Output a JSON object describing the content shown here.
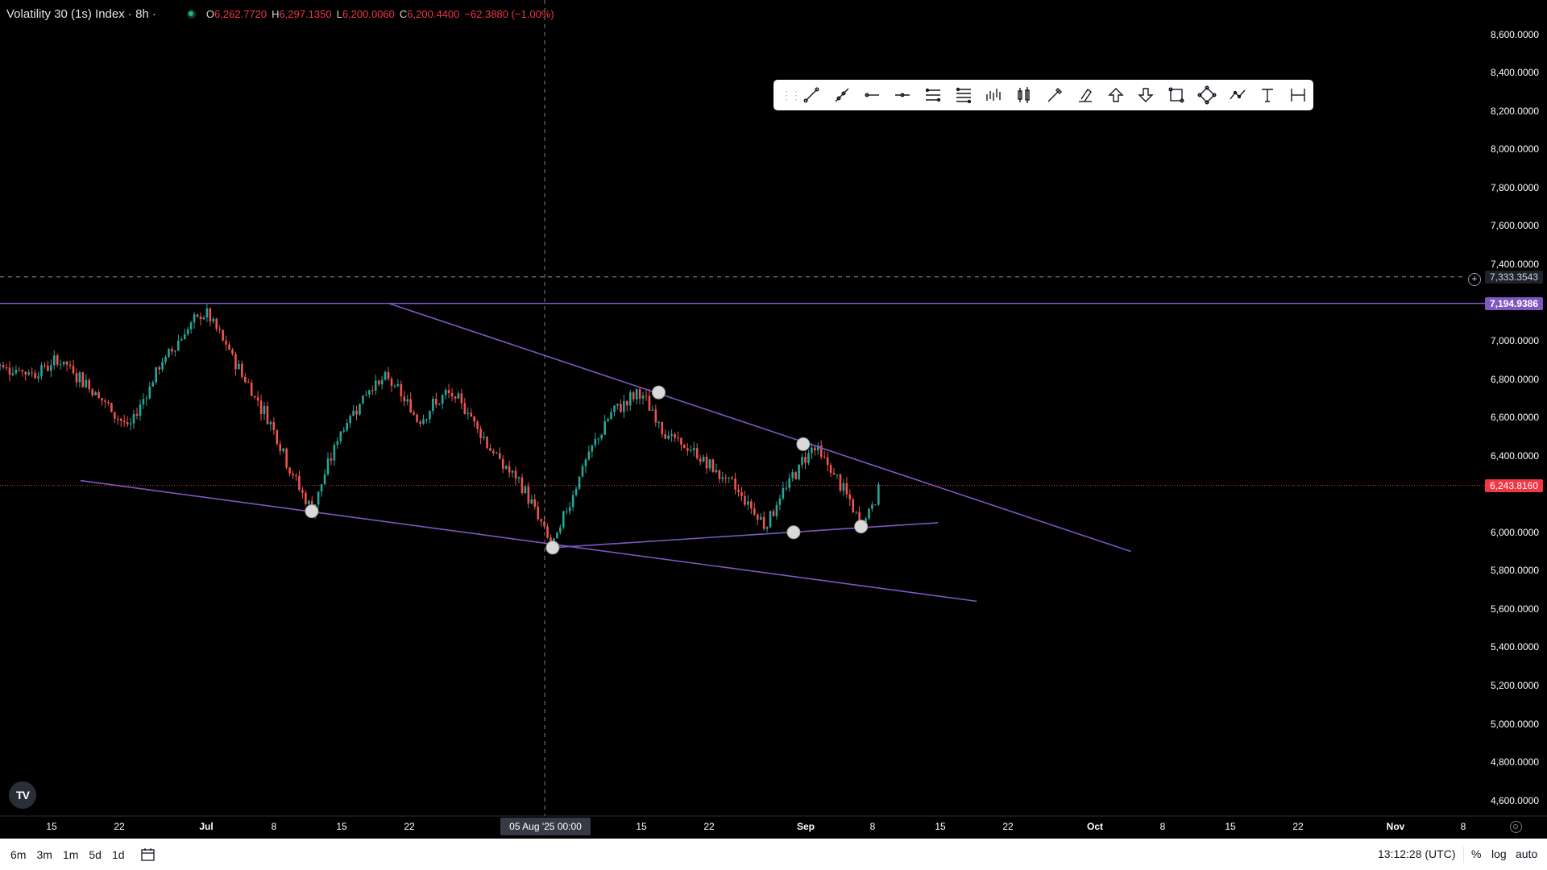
{
  "symbol": {
    "title": "Volatility 30 (1s) Index · 8h ·",
    "ohlc": [
      {
        "key": "O",
        "value": "6,262.7720"
      },
      {
        "key": "H",
        "value": "6,297.1350"
      },
      {
        "key": "L",
        "value": "6,200.0060"
      },
      {
        "key": "C",
        "value": "6,200.4400"
      }
    ],
    "change": "−62.3880 (−1.00%)"
  },
  "price_axis": {
    "ticks": [
      "8,600.0000",
      "8,400.0000",
      "8,200.0000",
      "8,000.0000",
      "7,800.0000",
      "7,600.0000",
      "7,400.0000",
      "7,000.0000",
      "6,800.0000",
      "6,600.0000",
      "6,400.0000",
      "6,000.0000",
      "5,800.0000",
      "5,600.0000",
      "5,400.0000",
      "5,200.0000",
      "5,000.0000",
      "4,800.0000",
      "4,600.0000"
    ],
    "tick_values": [
      8600,
      8400,
      8200,
      8000,
      7800,
      7600,
      7400,
      7000,
      6800,
      6600,
      6400,
      6000,
      5800,
      5600,
      5400,
      5200,
      5000,
      4800,
      4600
    ],
    "crosshair_price": "7,333.3543",
    "crosshair_value": 7333.3543,
    "horizontal_line_price": "7,194.9386",
    "horizontal_line_value": 7194.9386,
    "last_price": "6,243.8160",
    "last_value": 6243.816
  },
  "time_axis": {
    "ticks": [
      {
        "label": "15",
        "bold": false
      },
      {
        "label": "22",
        "bold": false
      },
      {
        "label": "Jul",
        "bold": true
      },
      {
        "label": "8",
        "bold": false
      },
      {
        "label": "15",
        "bold": false
      },
      {
        "label": "22",
        "bold": false
      },
      {
        "label": "15",
        "bold": false
      },
      {
        "label": "22",
        "bold": false
      },
      {
        "label": "Sep",
        "bold": true
      },
      {
        "label": "8",
        "bold": false
      },
      {
        "label": "15",
        "bold": false
      },
      {
        "label": "22",
        "bold": false
      },
      {
        "label": "Oct",
        "bold": true
      },
      {
        "label": "8",
        "bold": false
      },
      {
        "label": "15",
        "bold": false
      },
      {
        "label": "22",
        "bold": false
      },
      {
        "label": "Nov",
        "bold": true
      },
      {
        "label": "8",
        "bold": false
      }
    ],
    "crosshair_time": "05 Aug '25   00:00"
  },
  "chart_data": {
    "type": "candlestick",
    "symbol": "Volatility 30 (1s) Index",
    "interval": "8h",
    "series_path": [
      [
        "2025-06-09",
        6880
      ],
      [
        "2025-06-13",
        6830
      ],
      [
        "2025-06-16",
        6900
      ],
      [
        "2025-06-19",
        6760
      ],
      [
        "2025-06-23",
        6540
      ],
      [
        "2025-06-26",
        6850
      ],
      [
        "2025-06-29",
        7060
      ],
      [
        "2025-07-01",
        7150
      ],
      [
        "2025-07-03",
        6980
      ],
      [
        "2025-07-06",
        6720
      ],
      [
        "2025-07-08",
        6550
      ],
      [
        "2025-07-10",
        6300
      ],
      [
        "2025-07-12",
        6110
      ],
      [
        "2025-07-15",
        6530
      ],
      [
        "2025-07-18",
        6760
      ],
      [
        "2025-07-20",
        6800
      ],
      [
        "2025-07-23",
        6590
      ],
      [
        "2025-07-26",
        6720
      ],
      [
        "2025-07-28",
        6650
      ],
      [
        "2025-07-31",
        6400
      ],
      [
        "2025-08-03",
        6230
      ],
      [
        "2025-08-06",
        5920
      ],
      [
        "2025-08-09",
        6330
      ],
      [
        "2025-08-12",
        6620
      ],
      [
        "2025-08-15",
        6730
      ],
      [
        "2025-08-18",
        6500
      ],
      [
        "2025-08-21",
        6400
      ],
      [
        "2025-08-25",
        6230
      ],
      [
        "2025-08-28",
        6040
      ],
      [
        "2025-08-31",
        6300
      ],
      [
        "2025-09-02",
        6460
      ],
      [
        "2025-09-05",
        6240
      ],
      [
        "2025-09-07",
        6030
      ],
      [
        "2025-09-09",
        6240
      ]
    ],
    "drawings": {
      "horizontal_line": 7194.9386,
      "trendlines": [
        {
          "from": [
            "2025-07-20",
            7195
          ],
          "to": [
            "2025-10-05",
            5900
          ]
        },
        {
          "from": [
            "2025-06-18",
            6270
          ],
          "to": [
            "2025-09-19",
            5640
          ]
        },
        {
          "from": [
            "2025-08-06",
            5920
          ],
          "to": [
            "2025-09-15",
            6050
          ]
        }
      ],
      "pivots": [
        [
          "2025-07-12",
          6110
        ],
        [
          "2025-08-06",
          5920
        ],
        [
          "2025-08-17",
          6730
        ],
        [
          "2025-08-31",
          6000
        ],
        [
          "2025-09-01",
          6460
        ],
        [
          "2025-09-07",
          6030
        ]
      ]
    },
    "ylim": [
      4560,
      8700
    ],
    "grid": false,
    "colors": {
      "up": "#26a69a",
      "down": "#ef5350",
      "drawing": "#7e57c2"
    }
  },
  "drawing_toolbar": {
    "tools": [
      "trendline-icon",
      "ray-icon",
      "horizontal-ray-icon",
      "horizontal-line-icon",
      "parallel-channel-icon",
      "fib-retracement-icon",
      "bars-pattern-icon",
      "long-position-icon",
      "brush-icon",
      "highlighter-icon",
      "arrow-up-icon",
      "arrow-down-icon",
      "rectangle-icon",
      "rotated-rectangle-icon",
      "path-icon",
      "text-icon",
      "date-range-icon"
    ]
  },
  "bottom_bar": {
    "timeframes": [
      "6m",
      "3m",
      "1m",
      "5d",
      "1d"
    ],
    "clock": "13:12:28 (UTC)",
    "options": [
      "%",
      "log",
      "auto"
    ]
  },
  "logo": "TV",
  "colors": {
    "background": "#000000",
    "drawing": "#7e57c2",
    "last_price": "#f23645"
  }
}
